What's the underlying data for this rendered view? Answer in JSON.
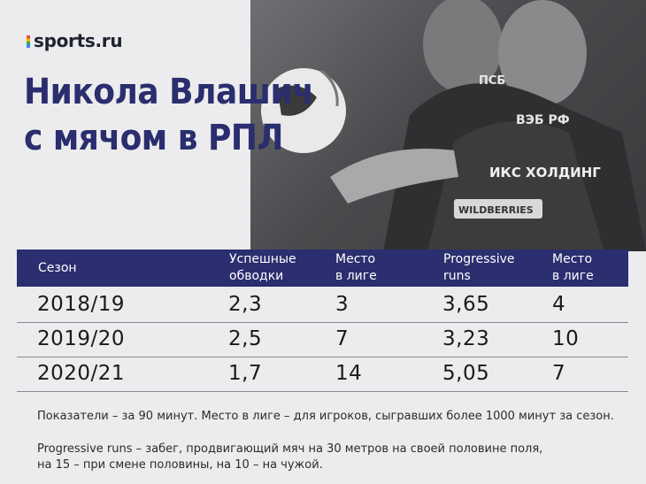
{
  "brand": {
    "logo_text": "sports.ru"
  },
  "title": {
    "line1": "Никола Влашич",
    "line2": "с мячом в РПЛ"
  },
  "photo": {
    "sponsors": [
      "ПСБ",
      "ВЭБ РФ",
      "ИКС ХОЛДИНГ",
      "WILDBERRIES"
    ]
  },
  "table": {
    "headers": {
      "season": "Сезон",
      "dribbles_1": "Успешные",
      "dribbles_2": "обводки",
      "rank1_1": "Место",
      "rank1_2": "в лиге",
      "prog_1": "Progressive",
      "prog_2": "runs",
      "rank2_1": "Место",
      "rank2_2": "в лиге"
    },
    "rows": [
      {
        "season": "2018/19",
        "dribbles": "2,3",
        "rank1": "3",
        "prog": "3,65",
        "rank2": "4"
      },
      {
        "season": "2019/20",
        "dribbles": "2,5",
        "rank1": "7",
        "prog": "3,23",
        "rank2": "10"
      },
      {
        "season": "2020/21",
        "dribbles": "1,7",
        "rank1": "14",
        "prog": "5,05",
        "rank2": "7"
      }
    ]
  },
  "notes": {
    "line1": "Показатели – за 90 минут. Место в лиге – для игроков, сыгравших более 1000 минут за сезон.",
    "line2": "Progressive runs  – забег, продвигающий мяч на 30 метров на своей половине поля,",
    "line3": "на 15 – при смене половины, на 10 – на чужой."
  }
}
